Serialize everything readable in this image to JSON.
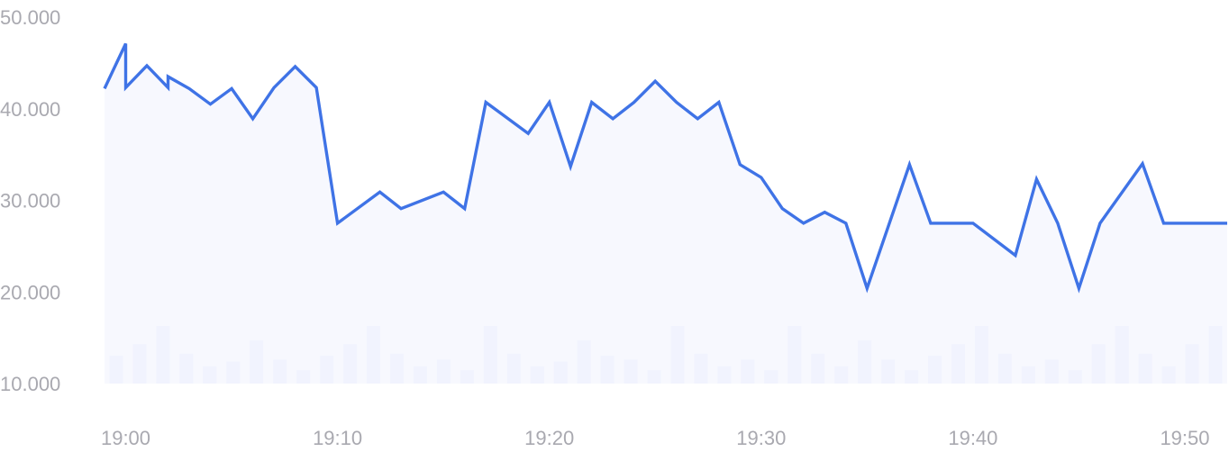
{
  "chart_data": {
    "type": "line",
    "title": "",
    "xlabel": "",
    "ylabel": "",
    "grid": false,
    "legend": "none",
    "x_ticks": [
      "19:00",
      "19:10",
      "19:20",
      "19:30",
      "19:40",
      "19:50"
    ],
    "y_ticks": [
      "10.000",
      "20.000",
      "30.000",
      "40.000",
      "50.000"
    ],
    "ylim": [
      10000,
      50000
    ],
    "x_unit": "minutes",
    "xlim": [
      "18:59",
      "19:52"
    ],
    "colors": {
      "line": "#3f73e6",
      "area_fill": "#f4f6fe",
      "volume_bars": "#e6ecfd",
      "tick_text": "#a9a9b0"
    },
    "price_series": {
      "x": [
        "18:59",
        "19:00",
        "19:00",
        "19:01",
        "19:02",
        "19:02",
        "19:03",
        "19:04",
        "19:05",
        "19:06",
        "19:07",
        "19:08",
        "19:09",
        "19:10",
        "19:12",
        "19:13",
        "19:15",
        "19:16",
        "19:17",
        "19:19",
        "19:20",
        "19:21",
        "19:22",
        "19:23",
        "19:24",
        "19:25",
        "19:26",
        "19:27",
        "19:28",
        "19:29",
        "19:30",
        "19:31",
        "19:32",
        "19:33",
        "19:34",
        "19:35",
        "19:37",
        "19:38",
        "19:39",
        "19:40",
        "19:42",
        "19:43",
        "19:44",
        "19:45",
        "19:46",
        "19:48",
        "19:49",
        "19:50",
        "19:52"
      ],
      "values": [
        42200,
        47100,
        42300,
        44700,
        42300,
        43500,
        42200,
        40500,
        42200,
        38900,
        42300,
        44600,
        42300,
        27500,
        30900,
        29100,
        30900,
        29100,
        40700,
        37300,
        40700,
        33700,
        40700,
        38900,
        40700,
        43000,
        40700,
        38900,
        40700,
        33900,
        32500,
        29100,
        27500,
        28700,
        27500,
        20400,
        33900,
        27500,
        27500,
        27500,
        24000,
        32300,
        27500,
        20400,
        27500,
        34000,
        27500,
        27500,
        27500
      ]
    },
    "volume_bars": {
      "values": [
        2.9,
        4.1,
        6.0,
        3.1,
        1.8,
        2.3,
        4.5,
        2.5,
        1.4,
        2.9,
        4.1,
        6.0,
        3.1,
        1.8,
        2.5,
        1.4,
        6.0,
        3.1,
        1.8,
        2.3,
        4.5,
        2.9,
        2.5,
        1.4,
        6.0,
        3.1,
        1.8,
        2.5,
        1.4,
        6.0,
        3.1,
        1.8,
        4.5,
        2.5,
        1.4,
        2.9,
        4.1,
        6.0,
        3.1,
        1.8,
        2.5,
        1.4,
        4.1,
        6.0,
        3.1,
        1.8,
        4.1,
        6.0
      ]
    }
  }
}
